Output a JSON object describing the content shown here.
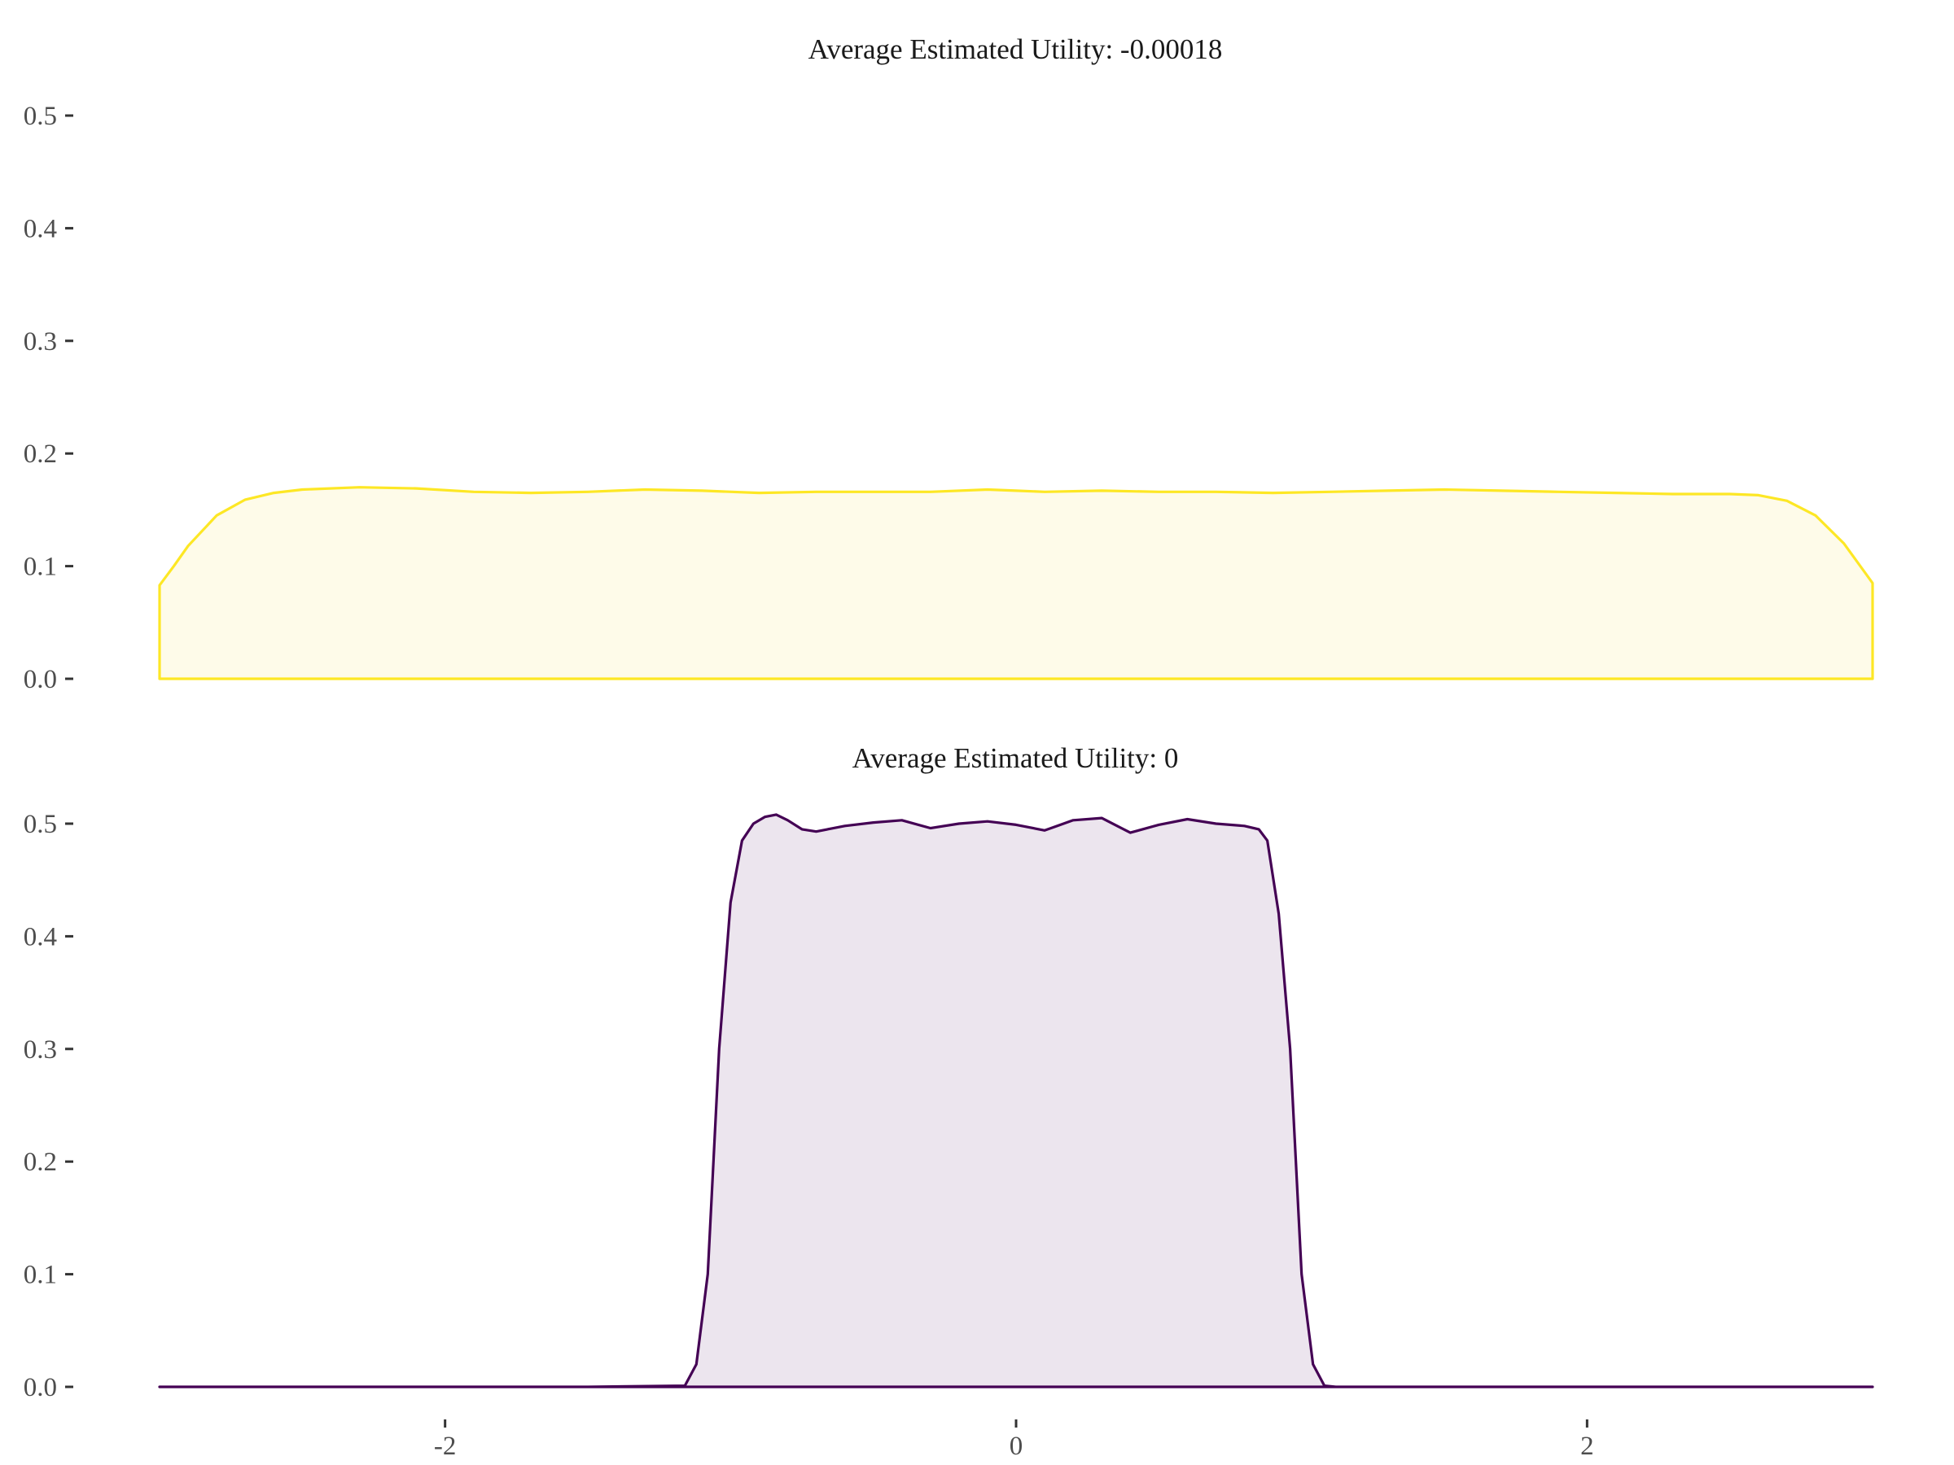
{
  "chart_data": [
    {
      "type": "area",
      "title": "Average Estimated Utility: -0.00018",
      "xlabel": "",
      "ylabel": "",
      "xlim": [
        -3,
        3
      ],
      "ylim": [
        0,
        0.5
      ],
      "yticks": [
        0.0,
        0.1,
        0.2,
        0.3,
        0.4,
        0.5
      ],
      "ytick_labels": [
        "0.0",
        "0.1",
        "0.2",
        "0.3",
        "0.4",
        "0.5"
      ],
      "show_x_axis": false,
      "grid": false,
      "color": "#FDE725",
      "fill": "#FEFBE9",
      "series": [
        {
          "x": [
            -3.0,
            -2.95,
            -2.9,
            -2.8,
            -2.7,
            -2.6,
            -2.5,
            -2.3,
            -2.1,
            -1.9,
            -1.7,
            -1.5,
            -1.3,
            -1.1,
            -0.9,
            -0.7,
            -0.5,
            -0.3,
            -0.1,
            0.0,
            0.1,
            0.3,
            0.5,
            0.7,
            0.9,
            1.1,
            1.3,
            1.5,
            1.7,
            1.9,
            2.1,
            2.3,
            2.5,
            2.6,
            2.7,
            2.8,
            2.9,
            3.0
          ],
          "y": [
            0.083,
            0.1,
            0.118,
            0.145,
            0.159,
            0.165,
            0.168,
            0.17,
            0.169,
            0.166,
            0.165,
            0.166,
            0.168,
            0.167,
            0.165,
            0.166,
            0.166,
            0.166,
            0.168,
            0.167,
            0.166,
            0.167,
            0.166,
            0.166,
            0.165,
            0.166,
            0.167,
            0.168,
            0.167,
            0.166,
            0.165,
            0.164,
            0.164,
            0.163,
            0.158,
            0.145,
            0.12,
            0.085
          ]
        }
      ]
    },
    {
      "type": "area",
      "title": "Average Estimated Utility: 0",
      "xlabel": "",
      "ylabel": "",
      "xlim": [
        -3,
        3
      ],
      "ylim": [
        0,
        0.5
      ],
      "xticks": [
        -2,
        0,
        2
      ],
      "xtick_labels": [
        "-2",
        "0",
        "2"
      ],
      "yticks": [
        0.0,
        0.1,
        0.2,
        0.3,
        0.4,
        0.5
      ],
      "ytick_labels": [
        "0.0",
        "0.1",
        "0.2",
        "0.3",
        "0.4",
        "0.5"
      ],
      "grid": false,
      "color": "#440154",
      "fill": "#ECE5EE",
      "series": [
        {
          "x": [
            -3.0,
            -1.5,
            -1.16,
            -1.12,
            -1.08,
            -1.04,
            -1.0,
            -0.96,
            -0.92,
            -0.88,
            -0.84,
            -0.8,
            -0.75,
            -0.7,
            -0.6,
            -0.5,
            -0.4,
            -0.3,
            -0.2,
            -0.1,
            0.0,
            0.1,
            0.2,
            0.3,
            0.4,
            0.5,
            0.6,
            0.7,
            0.8,
            0.85,
            0.88,
            0.92,
            0.96,
            1.0,
            1.04,
            1.08,
            1.12,
            1.16,
            1.5,
            3.0
          ],
          "y": [
            0.0,
            0.0,
            0.001,
            0.02,
            0.1,
            0.3,
            0.43,
            0.485,
            0.5,
            0.506,
            0.508,
            0.503,
            0.495,
            0.493,
            0.498,
            0.501,
            0.503,
            0.496,
            0.5,
            0.502,
            0.499,
            0.494,
            0.503,
            0.505,
            0.492,
            0.499,
            0.504,
            0.5,
            0.498,
            0.495,
            0.485,
            0.42,
            0.3,
            0.1,
            0.02,
            0.001,
            0.0,
            0.0,
            0.0,
            0.0
          ]
        }
      ]
    }
  ]
}
